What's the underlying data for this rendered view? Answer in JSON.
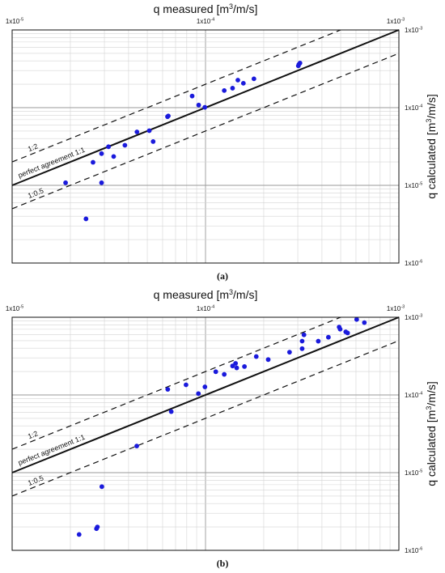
{
  "chart_data": [
    {
      "type": "scatter",
      "panel_label": "(a)",
      "xlabel_text": "q  measured [m",
      "xlabel_sup": "3",
      "xlabel_end": "/m/s]",
      "ylabel_text": "q  calculated [m",
      "ylabel_sup": "3",
      "ylabel_end": "/m/s]",
      "x_scale": "log",
      "y_scale": "log",
      "xlim": [
        1e-05,
        0.001
      ],
      "ylim": [
        1e-06,
        0.001
      ],
      "x_ticks": [
        {
          "value": 1e-05,
          "base": "1x10",
          "exp": "-5"
        },
        {
          "value": 0.0001,
          "base": "1x10",
          "exp": "-4"
        },
        {
          "value": 0.001,
          "base": "1x10",
          "exp": "-3"
        }
      ],
      "y_ticks": [
        {
          "value": 0.001,
          "base": "1x10",
          "exp": "-3"
        },
        {
          "value": 0.0001,
          "base": "1x10",
          "exp": "-4"
        },
        {
          "value": 1e-05,
          "base": "1x10",
          "exp": "-5"
        },
        {
          "value": 1e-06,
          "base": "1x10",
          "exp": "-6"
        }
      ],
      "grid": true,
      "reference_lines": [
        {
          "label": "1:2",
          "factor": 2,
          "style": "dashed"
        },
        {
          "label": "perfect agreement 1:1",
          "factor": 1,
          "style": "solid"
        },
        {
          "label": "1:0.5",
          "factor": 0.5,
          "style": "dashed"
        }
      ],
      "series": [
        {
          "color": "#1a1adc",
          "points": [
            [
              1.89e-05,
              1.08e-05
            ],
            [
              2.41e-05,
              3.7e-06
            ],
            [
              2.62e-05,
              1.98e-05
            ],
            [
              2.9e-05,
              2.56e-05
            ],
            [
              2.9e-05,
              1.08e-05
            ],
            [
              3.15e-05,
              3.14e-05
            ],
            [
              3.35e-05,
              2.35e-05
            ],
            [
              3.83e-05,
              3.28e-05
            ],
            [
              4.42e-05,
              4.87e-05
            ],
            [
              5.12e-05,
              5.05e-05
            ],
            [
              5.36e-05,
              3.66e-05
            ],
            [
              6.42e-05,
              7.82e-05
            ],
            [
              6.36e-05,
              7.65e-05
            ],
            [
              8.53e-05,
              0.000141
            ],
            [
              9.22e-05,
              0.000108
            ],
            [
              9.92e-05,
              0.000101
            ],
            [
              0.000125,
              0.000166
            ],
            [
              0.000138,
              0.000178
            ],
            [
              0.000147,
              0.000226
            ],
            [
              0.000157,
              0.000206
            ],
            [
              0.000178,
              0.000235
            ],
            [
              0.000302,
              0.000345
            ],
            [
              0.000304,
              0.00036
            ],
            [
              0.000308,
              0.000375
            ]
          ]
        }
      ]
    },
    {
      "type": "scatter",
      "panel_label": "(b)",
      "xlabel_text": "q  measured [m",
      "xlabel_sup": "3",
      "xlabel_end": "/m/s]",
      "ylabel_text": "q  calculated [m",
      "ylabel_sup": "3",
      "ylabel_end": "/m/s]",
      "x_scale": "log",
      "y_scale": "log",
      "xlim": [
        1e-05,
        0.001
      ],
      "ylim": [
        1e-06,
        0.001
      ],
      "x_ticks": [
        {
          "value": 1e-05,
          "base": "1x10",
          "exp": "-5"
        },
        {
          "value": 0.0001,
          "base": "1x10",
          "exp": "-4"
        },
        {
          "value": 0.001,
          "base": "1x10",
          "exp": "-3"
        }
      ],
      "y_ticks": [
        {
          "value": 0.001,
          "base": "1x10",
          "exp": "-3"
        },
        {
          "value": 0.0001,
          "base": "1x10",
          "exp": "-4"
        },
        {
          "value": 1e-05,
          "base": "1x10",
          "exp": "-5"
        },
        {
          "value": 1e-06,
          "base": "1x10",
          "exp": "-6"
        }
      ],
      "grid": true,
      "reference_lines": [
        {
          "label": "1:2",
          "factor": 2,
          "style": "dashed"
        },
        {
          "label": "perfect agreement 1:1",
          "factor": 1,
          "style": "solid"
        },
        {
          "label": "1:0.5",
          "factor": 0.5,
          "style": "dashed"
        }
      ],
      "series": [
        {
          "color": "#1a1adc",
          "points": [
            [
              2.22e-05,
              1.6e-06
            ],
            [
              2.73e-05,
              1.9e-06
            ],
            [
              2.76e-05,
              2e-06
            ],
            [
              2.91e-05,
              6.6e-06
            ],
            [
              4.41e-05,
              2.2e-05
            ],
            [
              6.65e-05,
              6.1e-05
            ],
            [
              6.38e-05,
              0.000118
            ],
            [
              7.93e-05,
              0.000135
            ],
            [
              9.19e-05,
              0.000104
            ],
            [
              9.93e-05,
              0.000127
            ],
            [
              0.000113,
              0.000199
            ],
            [
              0.000125,
              0.000184
            ],
            [
              0.000145,
              0.000223
            ],
            [
              0.000138,
              0.000236
            ],
            [
              0.000143,
              0.000255
            ],
            [
              0.000159,
              0.000232
            ],
            [
              0.000183,
              0.000312
            ],
            [
              0.000211,
              0.000285
            ],
            [
              0.000272,
              0.000355
            ],
            [
              0.000316,
              0.000394
            ],
            [
              0.000316,
              0.000493
            ],
            [
              0.000323,
              0.000594
            ],
            [
              0.000383,
              0.000492
            ],
            [
              0.000432,
              0.000553
            ],
            [
              0.000491,
              0.000748
            ],
            [
              0.000497,
              0.000702
            ],
            [
              0.000531,
              0.000649
            ],
            [
              0.000543,
              0.000628
            ],
            [
              0.000605,
              0.000937
            ],
            [
              0.000663,
              0.000853
            ]
          ]
        }
      ]
    }
  ]
}
